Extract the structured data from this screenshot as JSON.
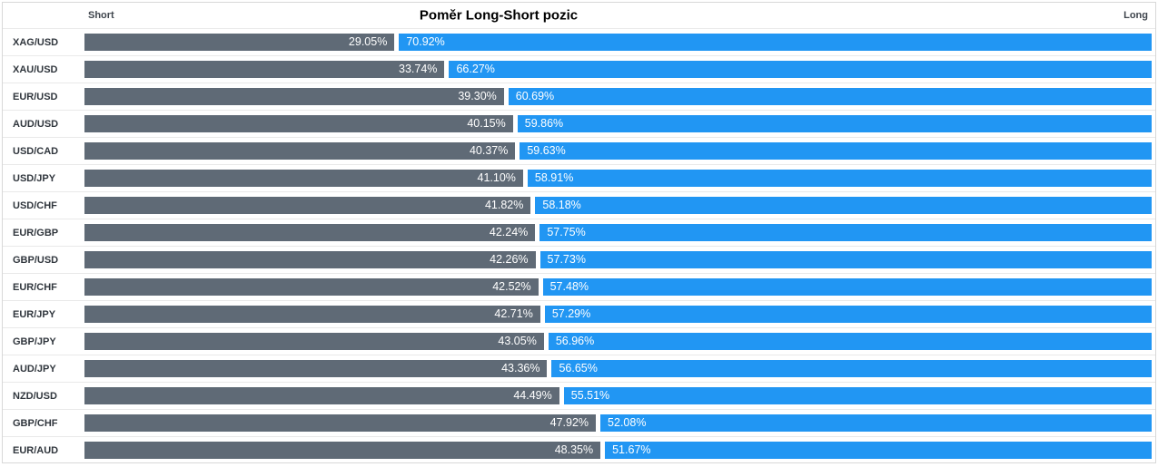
{
  "header": {
    "title": "Poměr Long-Short pozic",
    "short_label": "Short",
    "long_label": "Long"
  },
  "colors": {
    "short_bar": "#5f6a76",
    "long_bar": "#2196f3",
    "bar_value_text": "#ffffff",
    "pair_label_text": "#30363d",
    "row_separator": "#e9e9e9",
    "frame_border": "#d8d8d8",
    "background": "#ffffff"
  },
  "chart_data": {
    "type": "bar",
    "orientation": "horizontal",
    "stacked": true,
    "title": "Poměr Long-Short pozic",
    "xlim": [
      0,
      100
    ],
    "value_suffix": "%",
    "legend_position": "top (Short left, Long right)",
    "grid": false,
    "categories": [
      "XAG/USD",
      "XAU/USD",
      "EUR/USD",
      "AUD/USD",
      "USD/CAD",
      "USD/JPY",
      "USD/CHF",
      "EUR/GBP",
      "GBP/USD",
      "EUR/CHF",
      "EUR/JPY",
      "GBP/JPY",
      "AUD/JPY",
      "NZD/USD",
      "GBP/CHF",
      "EUR/AUD"
    ],
    "series": [
      {
        "name": "Short",
        "color": "#5f6a76",
        "values": [
          29.05,
          33.74,
          39.3,
          40.15,
          40.37,
          41.1,
          41.82,
          42.24,
          42.26,
          42.52,
          42.71,
          43.05,
          43.36,
          44.49,
          47.92,
          48.35
        ]
      },
      {
        "name": "Long",
        "color": "#2196f3",
        "values": [
          70.92,
          66.27,
          60.69,
          59.86,
          59.63,
          58.91,
          58.18,
          57.75,
          57.73,
          57.48,
          57.29,
          56.96,
          56.65,
          55.51,
          52.08,
          51.67
        ]
      }
    ]
  }
}
